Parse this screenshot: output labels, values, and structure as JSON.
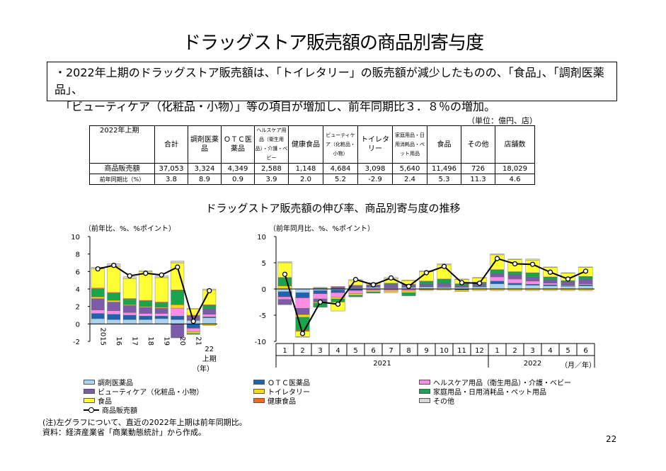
{
  "title": "ドラッグストア販売額の商品別寄与度",
  "summary": {
    "line1": "・2022年上期のドラッグストア販売額は、「トイレタリー」の販売額が減少したものの、「食品」、「調剤医薬品」、",
    "line2": "「ビューティケア（化粧品・小物）」等の項目が増加し、前年同期比３．８％の増加。"
  },
  "table": {
    "unit": "（単位：億円、店）",
    "corner": "2022年上期",
    "headers": [
      "合計",
      "調剤医薬品",
      "ＯＴＣ医薬品",
      "ヘルスケア用品（衛生用品）・介護・ベビー",
      "健康食品",
      "ビューティケア（化粧品・小物）",
      "トイレタリー",
      "家庭用品・日用消耗品・ペット用品",
      "食品",
      "その他",
      "店舗数"
    ],
    "rows": [
      {
        "label": "商品販売額",
        "values": [
          "37,053",
          "3,324",
          "4,349",
          "2,588",
          "1,148",
          "4,684",
          "3,098",
          "5,640",
          "11,496",
          "726",
          "18,029"
        ]
      },
      {
        "label": "前年同期比（%）",
        "values": [
          "3.8",
          "8.9",
          "0.9",
          "3.9",
          "2.0",
          "5.2",
          "-2.9",
          "2.4",
          "5.3",
          "11.3",
          "4.6"
        ]
      }
    ]
  },
  "subtitle": "ドラッグストア販売額の伸び率、商品別寄与度の推移",
  "chart_data": [
    {
      "type": "bar",
      "stacked": true,
      "ylabel": "（前年比、%、%ポイント）",
      "ylim": [
        -2,
        10
      ],
      "yticks": [
        -2,
        0,
        2,
        4,
        6,
        8,
        10
      ],
      "categories": [
        "2015",
        "16",
        "17",
        "18",
        "19",
        "20",
        "21",
        "22上期"
      ],
      "xunit": "（年）",
      "series": [
        {
          "name": "調剤医薬品",
          "values": [
            0.6,
            0.5,
            0.5,
            0.5,
            0.6,
            0.5,
            0.4,
            0.7
          ]
        },
        {
          "name": "ＯＴＣ医薬品",
          "values": [
            0.6,
            0.6,
            0.5,
            0.4,
            0.3,
            0.4,
            -0.5,
            0.1
          ]
        },
        {
          "name": "ヘルスケア用品（衛生用品）・介護・ベビー",
          "values": [
            0.4,
            0.4,
            0.3,
            0.3,
            0.3,
            0.9,
            -0.4,
            0.3
          ]
        },
        {
          "name": "ビューティケア（化粧品・小物）",
          "values": [
            1.3,
            1.0,
            0.8,
            0.7,
            0.6,
            -1.6,
            0.5,
            0.6
          ]
        },
        {
          "name": "トイレタリー",
          "values": [
            0.2,
            0.2,
            0.1,
            0.1,
            0.1,
            0.4,
            -0.2,
            -0.2
          ]
        },
        {
          "name": "家庭用品・日用消耗品・ペット用品",
          "values": [
            0.9,
            0.8,
            0.6,
            0.6,
            0.5,
            1.6,
            -0.1,
            0.4
          ]
        },
        {
          "name": "健康食品",
          "values": [
            0.1,
            0.1,
            0.1,
            0.1,
            0.1,
            0.1,
            0.1,
            0.1
          ]
        },
        {
          "name": "食品",
          "values": [
            2.2,
            3.0,
            2.3,
            3.3,
            2.8,
            3.1,
            0.7,
            1.7
          ]
        },
        {
          "name": "その他",
          "values": [
            0.2,
            0.3,
            0.2,
            0.1,
            0.2,
            0.2,
            0.1,
            0.1
          ]
        }
      ],
      "line": {
        "name": "商品販売額",
        "values": [
          6.3,
          6.7,
          5.5,
          5.8,
          5.6,
          6.5,
          0.3,
          3.8
        ]
      }
    },
    {
      "type": "bar",
      "stacked": true,
      "ylabel": "（前年同月比、%、%ポイント）",
      "ylim": [
        -10,
        10
      ],
      "yticks": [
        -10,
        -5,
        0,
        5,
        10
      ],
      "categories": [
        "1",
        "2",
        "3",
        "4",
        "5",
        "6",
        "7",
        "8",
        "9",
        "10",
        "11",
        "12",
        "1",
        "2",
        "3",
        "4",
        "5",
        "6"
      ],
      "year_labels": [
        "2021",
        "2022"
      ],
      "xunit": "（月／年）",
      "series": [
        {
          "name": "調剤医薬品",
          "values": [
            -0.5,
            -0.7,
            -0.3,
            -0.2,
            0.2,
            0.3,
            0.2,
            0.3,
            0.4,
            0.3,
            0.3,
            0.4,
            1.0,
            0.8,
            0.7,
            0.6,
            0.5,
            0.6
          ]
        },
        {
          "name": "ＯＴＣ医薬品",
          "values": [
            -1.0,
            -1.0,
            -0.6,
            -0.5,
            -0.3,
            -0.1,
            -0.1,
            -0.1,
            0.1,
            0.1,
            -0.2,
            0.1,
            0.5,
            0.3,
            0.2,
            0.2,
            0.1,
            0.2
          ]
        },
        {
          "name": "ヘルスケア用品（衛生用品）・介護・ベビー",
          "values": [
            -0.5,
            -2.0,
            -1.0,
            -0.9,
            -0.6,
            -0.3,
            -0.3,
            -0.3,
            -0.1,
            0.1,
            0.0,
            0.1,
            0.8,
            0.8,
            0.6,
            0.3,
            0.1,
            0.2
          ]
        },
        {
          "name": "ビューティケア（化粧品・小物）",
          "values": [
            -1.0,
            -1.2,
            -0.6,
            0.3,
            0.4,
            0.4,
            0.6,
            0.5,
            0.4,
            0.5,
            0.3,
            0.3,
            0.6,
            0.8,
            0.7,
            0.6,
            0.6,
            0.8
          ]
        },
        {
          "name": "トイレタリー",
          "values": [
            0.6,
            -0.5,
            -0.2,
            -0.3,
            -0.3,
            -0.2,
            -0.3,
            -0.3,
            -0.2,
            -0.2,
            -0.3,
            -0.3,
            -0.3,
            -0.3,
            -0.3,
            -0.3,
            -0.3,
            -0.3
          ]
        },
        {
          "name": "家庭用品・日用消耗品・ペット用品",
          "values": [
            1.5,
            -2.5,
            -0.8,
            -0.6,
            -0.3,
            -0.2,
            0.2,
            -0.6,
            0.5,
            0.8,
            0.3,
            0.3,
            0.7,
            0.5,
            0.8,
            0.5,
            0.2,
            0.5
          ]
        },
        {
          "name": "健康食品",
          "values": [
            0.1,
            -0.2,
            0.1,
            0.1,
            0.1,
            0.1,
            0.1,
            0.1,
            0.1,
            0.1,
            0.1,
            0.1,
            0.1,
            0.1,
            0.1,
            0.1,
            0.1,
            0.1
          ]
        },
        {
          "name": "食品",
          "values": [
            2.8,
            -1.0,
            0.1,
            -1.7,
            0.9,
            0.3,
            0.9,
            0.7,
            1.8,
            2.7,
            0.8,
            0.8,
            2.8,
            2.3,
            2.4,
            1.8,
            1.4,
            1.7
          ]
        },
        {
          "name": "その他",
          "values": [
            0.2,
            -0.1,
            0.1,
            0.1,
            0.2,
            0.1,
            0.2,
            0.1,
            0.2,
            0.2,
            0.1,
            0.1,
            0.2,
            0.1,
            0.2,
            0.1,
            0.1,
            0.1
          ]
        }
      ],
      "line": {
        "name": "商品販売額",
        "values": [
          2.8,
          -8.5,
          -2.5,
          -2.9,
          1.8,
          0.8,
          2.1,
          0.5,
          3.1,
          4.3,
          1.2,
          1.1,
          5.8,
          4.8,
          4.7,
          3.2,
          1.9,
          3.4
        ]
      }
    }
  ],
  "colors": [
    "#a9d3ef",
    "#1f62b0",
    "#ff8de6",
    "#7b5ca8",
    "#ffd900",
    "#19a54b",
    "#ff6a10",
    "#ffff33",
    "#d8d8d8"
  ],
  "legend": {
    "items": [
      "調剤医薬品",
      "ＯＴＣ医薬品",
      "ヘルスケア用品（衛生用品）・介護・ベビー",
      "ビューティケア（化粧品・小物）",
      "トイレタリー",
      "家庭用品・日用消耗品・ペット用品",
      "食品",
      "健康食品",
      "その他",
      "商品販売額"
    ]
  },
  "notes": {
    "note": "(注)左グラフについて、直近の2022年上期は前年同期比。",
    "source": "資料：経済産業省「商業動態統計」から作成。"
  },
  "page_number": "22"
}
